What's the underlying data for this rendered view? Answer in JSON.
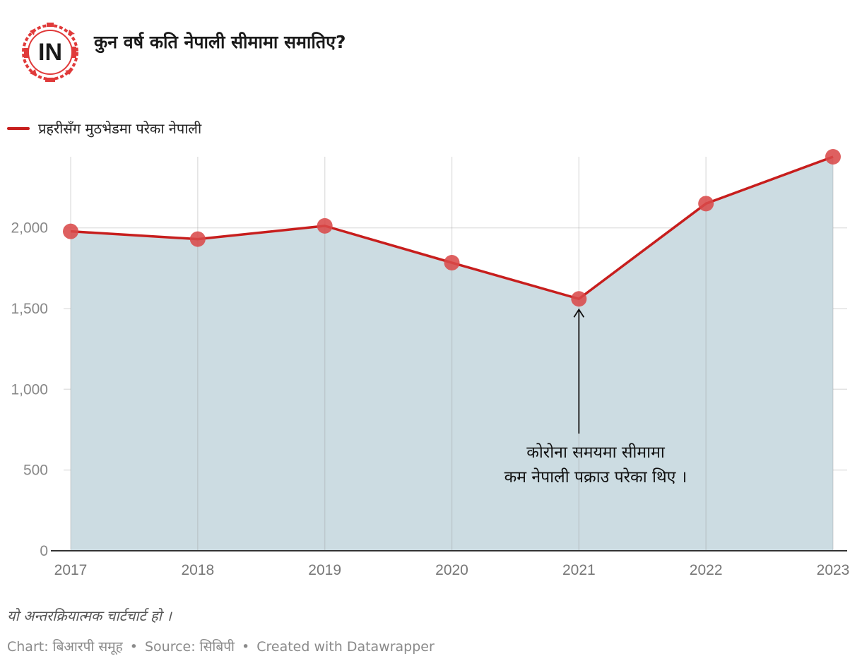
{
  "header": {
    "logo_text": "IN",
    "title": "कुन वर्ष कति नेपाली सीमामा समातिए?"
  },
  "colors": {
    "line": "#c71e1d",
    "point": "#d94a4a",
    "area": "#ccdce2",
    "grid": "#e3e3e3",
    "axis": "#333333"
  },
  "chart_data": {
    "type": "area",
    "title": "कुन वर्ष कति नेपाली सीमामा समातिए?",
    "x": [
      "2017",
      "2018",
      "2019",
      "2020",
      "2021",
      "2022",
      "2023"
    ],
    "series": [
      {
        "name": "प्रहरीसँग मुठभेडमा परेका नेपाली",
        "values": [
          1978,
          1930,
          2012,
          1784,
          1560,
          2150,
          2440
        ]
      }
    ],
    "yticks": [
      0,
      500,
      1000,
      1500,
      2000
    ],
    "ytick_labels": [
      "0",
      "500",
      "1,000",
      "1,500",
      "2,000"
    ],
    "ylim": [
      0,
      2440
    ],
    "grid": true,
    "legend_placement": "top-left",
    "annotation": {
      "target_x": "2021",
      "lines": [
        "कोरोना समयमा सीमामा",
        "कम नेपाली पक्राउ परेका थिए ।"
      ]
    }
  },
  "footer": {
    "note": "यो अन्तरक्रियात्मक चार्टचार्ट हो   ।",
    "chart_credit": "Chart: बिआरपी समूह ",
    "source": "Source: सिबिपी",
    "tool": "Created with Datawrapper",
    "separator": "•"
  }
}
